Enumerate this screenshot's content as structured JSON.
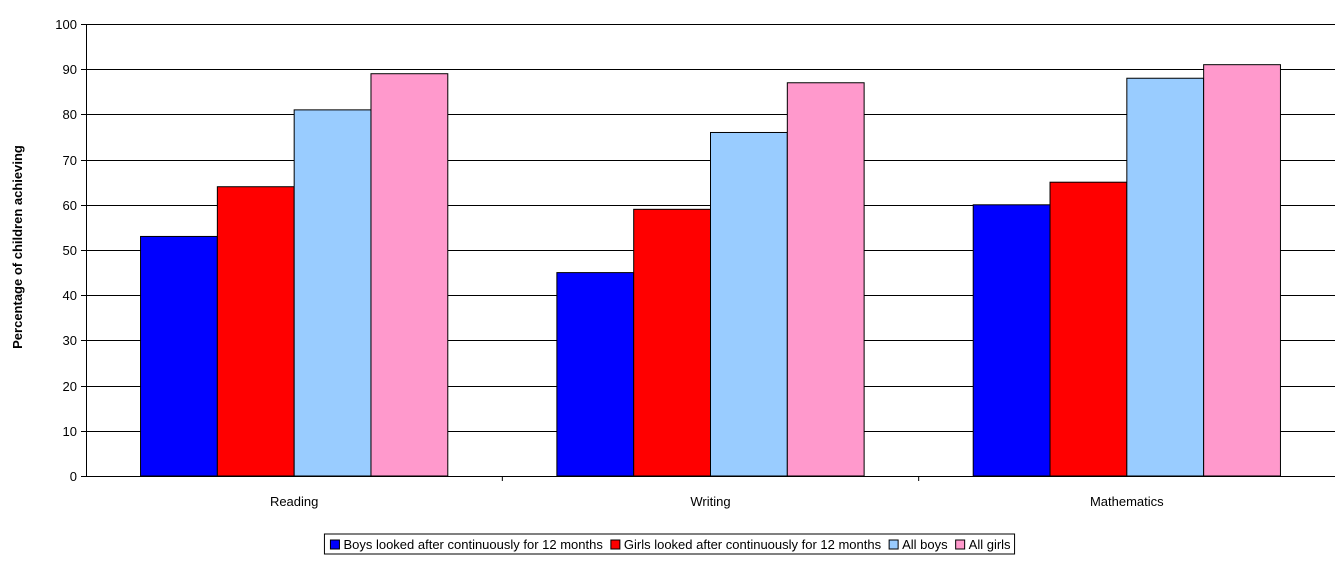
{
  "chart_data": {
    "type": "bar",
    "title": "",
    "xlabel": "",
    "ylabel": "Percentage of children achieving",
    "ylim": [
      0,
      100
    ],
    "yticks": [
      0,
      10,
      20,
      30,
      40,
      50,
      60,
      70,
      80,
      90,
      100
    ],
    "grid": true,
    "legend_position": "bottom",
    "categories": [
      "Reading",
      "Writing",
      "Mathematics"
    ],
    "series": [
      {
        "name": "Boys looked after continuously for 12 months",
        "color": "#0000ff",
        "values": [
          53,
          45,
          60
        ]
      },
      {
        "name": "Girls looked after continuously for 12 months",
        "color": "#ff0000",
        "values": [
          64,
          59,
          65
        ]
      },
      {
        "name": "All boys",
        "color": "#99ccff",
        "values": [
          81,
          76,
          88
        ]
      },
      {
        "name": "All girls",
        "color": "#ff99cc",
        "values": [
          89,
          87,
          91
        ]
      }
    ]
  }
}
